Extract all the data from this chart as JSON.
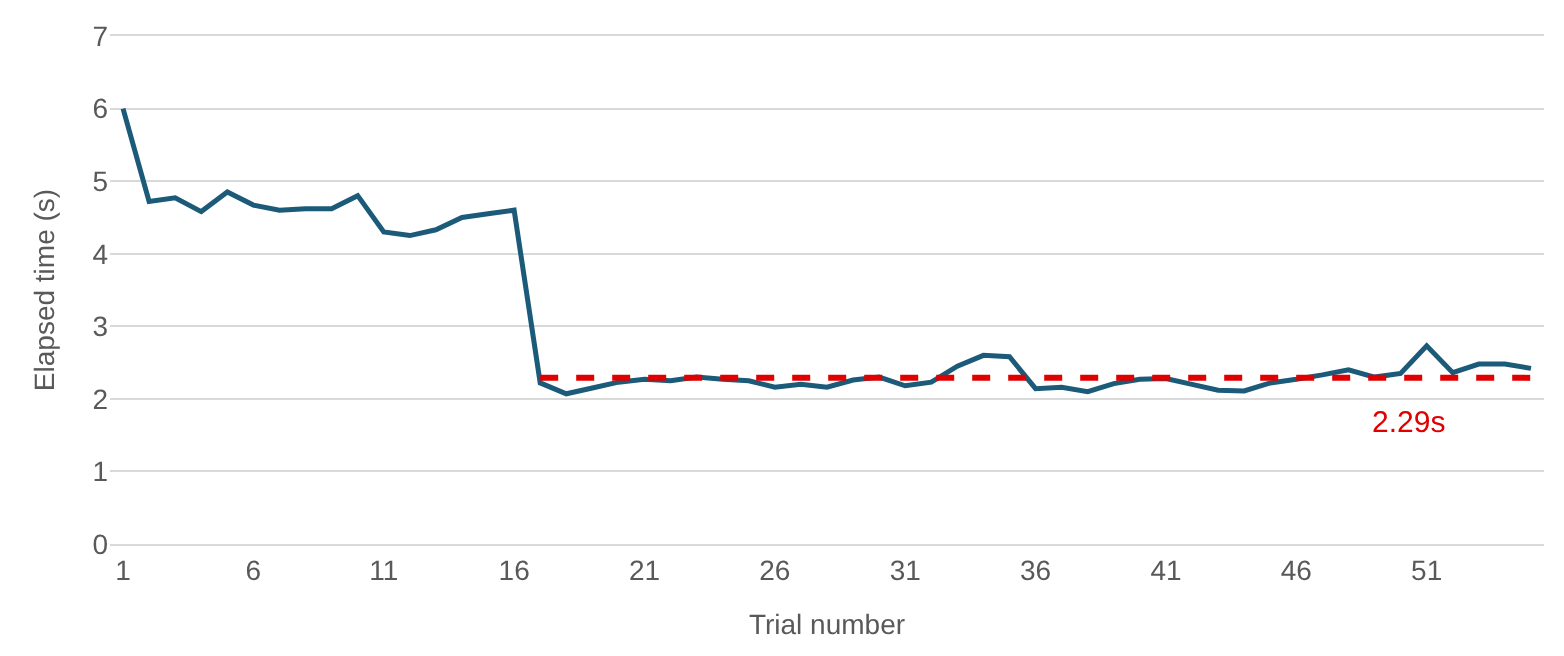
{
  "chart_data": {
    "type": "line",
    "xlabel": "Trial number",
    "ylabel": "Elapsed time (s)",
    "x": [
      1,
      2,
      3,
      4,
      5,
      6,
      7,
      8,
      9,
      10,
      11,
      12,
      13,
      14,
      15,
      16,
      17,
      18,
      19,
      20,
      21,
      22,
      23,
      24,
      25,
      26,
      27,
      28,
      29,
      30,
      31,
      32,
      33,
      34,
      35,
      36,
      37,
      38,
      39,
      40,
      41,
      42,
      43,
      44,
      45,
      46,
      47,
      48,
      49,
      50,
      51,
      52,
      53,
      54,
      55
    ],
    "series": [
      {
        "color": "#1b5a79",
        "line_style": "solid",
        "values": [
          6.0,
          4.72,
          4.77,
          4.58,
          4.85,
          4.67,
          4.6,
          4.62,
          4.62,
          4.8,
          4.3,
          4.25,
          4.33,
          4.5,
          4.55,
          4.6,
          2.22,
          2.07,
          2.15,
          2.23,
          2.27,
          2.25,
          2.3,
          2.27,
          2.25,
          2.16,
          2.2,
          2.16,
          2.26,
          2.3,
          2.18,
          2.23,
          2.45,
          2.6,
          2.58,
          2.14,
          2.16,
          2.1,
          2.21,
          2.27,
          2.28,
          2.2,
          2.12,
          2.11,
          2.22,
          2.27,
          2.33,
          2.4,
          2.3,
          2.35,
          2.73,
          2.36,
          2.48,
          2.48,
          2.42
        ]
      },
      {
        "type": "line",
        "color": "#e00000",
        "line_style": "dashed",
        "x": [
          17,
          55
        ],
        "values": [
          2.29,
          2.29
        ]
      }
    ],
    "annotations": [
      "2.29s"
    ],
    "xlim": [
      0.5,
      55.5
    ],
    "xticks": [
      1,
      6,
      11,
      16,
      21,
      26,
      31,
      36,
      41,
      46,
      51
    ],
    "ylim": [
      0,
      7
    ],
    "yticks": [
      0,
      1,
      2,
      3,
      4,
      5,
      6,
      7
    ],
    "grid": "y",
    "marker": "none"
  }
}
